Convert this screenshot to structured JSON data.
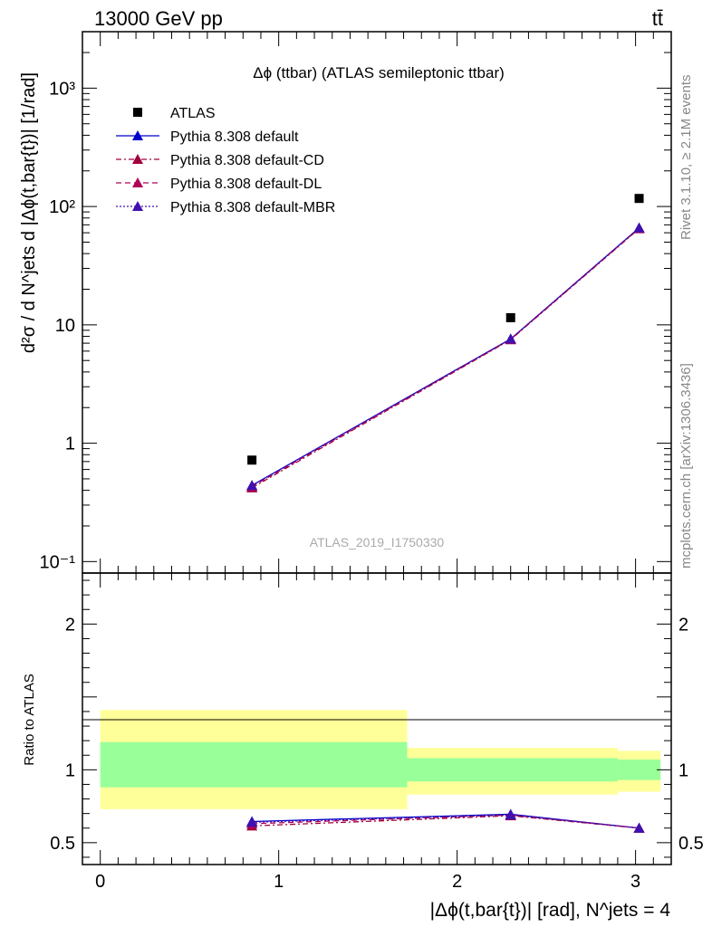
{
  "header": {
    "energy_label": "13000 GeV pp",
    "process_label": "tt̄"
  },
  "side_labels": {
    "rivet": "Rivet 3.1.10, ≥ 2.1M events",
    "mcplots": "mcplots.cern.ch [arXiv:1306.3436]"
  },
  "chart_data": [
    {
      "type": "line",
      "title": "Δϕ (ttbar) (ATLAS semileptonic ttbar)",
      "watermark": "ATLAS_2019_I1750330",
      "xlabel": "|Δϕ(t,bar{t})| [rad], N^jets = 4",
      "ylabel": "d²σ / d N^jets d |Δϕ(t,bar{t})| [1/rad]",
      "yscale": "log",
      "xlim": [
        -0.1,
        3.2
      ],
      "ylim": [
        0.08,
        3000
      ],
      "x_ticks": [
        0,
        1,
        2,
        3
      ],
      "y_tick_labels": [
        "10⁻¹",
        "1",
        "10",
        "10²",
        "10³"
      ],
      "legend_position": "top-left",
      "x": [
        0.85,
        2.3,
        3.02
      ],
      "series": [
        {
          "name": "ATLAS",
          "marker": "square",
          "color": "#000000",
          "values": [
            0.72,
            11.5,
            117
          ]
        },
        {
          "name": "Pythia 8.308 default",
          "marker": "triangle",
          "line": "solid",
          "color": "#0000cc",
          "values": [
            0.44,
            7.6,
            66
          ]
        },
        {
          "name": "Pythia 8.308 default-CD",
          "marker": "triangle",
          "line": "dashdot",
          "color": "#a0003c",
          "values": [
            0.42,
            7.5,
            65
          ]
        },
        {
          "name": "Pythia 8.308 default-DL",
          "marker": "triangle",
          "line": "dashed",
          "color": "#b0005a",
          "values": [
            0.43,
            7.55,
            65.5
          ]
        },
        {
          "name": "Pythia 8.308 default-MBR",
          "marker": "triangle",
          "line": "dotted",
          "color": "#4010b0",
          "values": [
            0.44,
            7.6,
            66
          ]
        }
      ]
    },
    {
      "type": "line",
      "ylabel": "Ratio to ATLAS",
      "xlim": [
        -0.1,
        3.2
      ],
      "ylim": [
        0.35,
        2.35
      ],
      "y_ticks": [
        0.5,
        1,
        2
      ],
      "y_tick_labels": [
        "0.5",
        "1",
        "2"
      ],
      "x": [
        0.85,
        2.3,
        3.02
      ],
      "bands": [
        {
          "x_lo": 0.0,
          "x_hi": 1.72,
          "outer": [
            0.73,
            1.41
          ],
          "inner": [
            0.88,
            1.19
          ]
        },
        {
          "x_lo": 1.72,
          "x_hi": 2.9,
          "outer": [
            0.83,
            1.15
          ],
          "inner": [
            0.92,
            1.08
          ]
        },
        {
          "x_lo": 2.9,
          "x_hi": 3.14,
          "outer": [
            0.85,
            1.13
          ],
          "inner": [
            0.93,
            1.07
          ]
        }
      ],
      "band_colors": {
        "outer": "#ffff99",
        "inner": "#99ff99"
      },
      "series": [
        {
          "name": "Pythia 8.308 default",
          "color": "#0000cc",
          "values": [
            0.645,
            0.695,
            0.6
          ]
        },
        {
          "name": "Pythia 8.308 default-CD",
          "color": "#a0003c",
          "values": [
            0.615,
            0.685,
            0.6
          ]
        },
        {
          "name": "Pythia 8.308 default-DL",
          "color": "#b0005a",
          "values": [
            0.63,
            0.69,
            0.6
          ]
        },
        {
          "name": "Pythia 8.308 default-MBR",
          "color": "#4010b0",
          "values": [
            0.64,
            0.69,
            0.6
          ]
        }
      ]
    }
  ]
}
